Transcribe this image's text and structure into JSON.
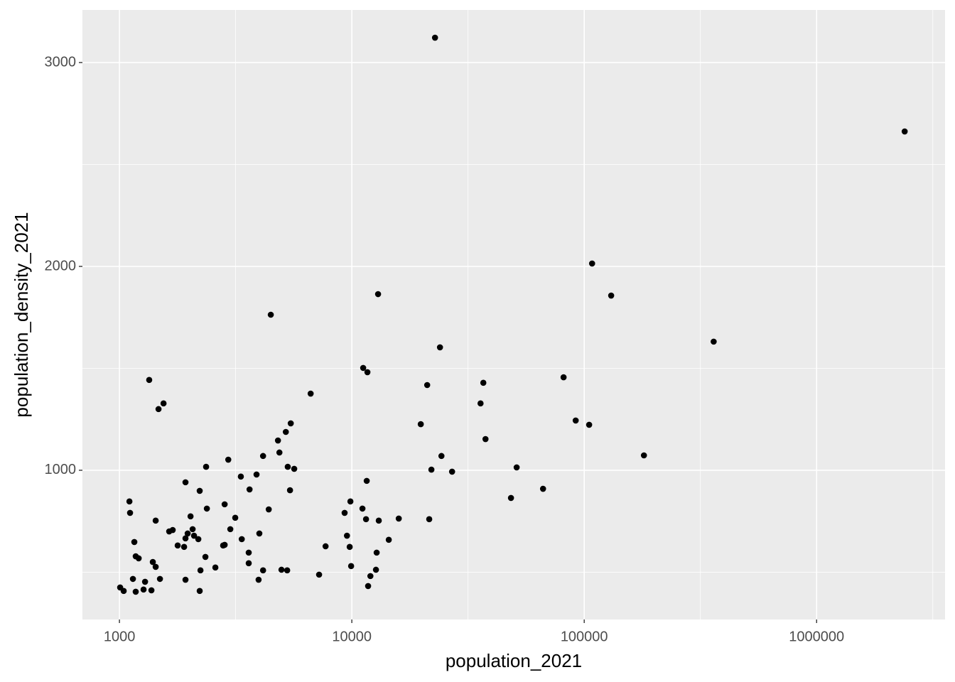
{
  "chart_data": {
    "type": "scatter",
    "x_label": "population_2021",
    "y_label": "population_density_2021",
    "x_scale": "log",
    "color": "#000000",
    "grid": true,
    "xlim": [
      693,
      3570000
    ],
    "xticks": [
      1000,
      10000,
      100000,
      1000000
    ],
    "xminor": [
      3162,
      31623,
      316228,
      3162278
    ],
    "ylim": [
      268,
      3258
    ],
    "yticks": [
      1000,
      2000,
      3000
    ],
    "yminor": [
      500,
      1500,
      2500
    ],
    "x": [
      2393000,
      22800,
      108100,
      130600,
      360600,
      12970,
      4480,
      23950,
      11190,
      11670,
      81500,
      36800,
      21100,
      6650,
      1343,
      35800,
      1548,
      1473,
      91900,
      19800,
      105000,
      5460,
      5200,
      37600,
      4810,
      4880,
      4150,
      24300,
      180700,
      2940,
      2360,
      5300,
      5650,
      51200,
      22000,
      27000,
      3890,
      3330,
      11590,
      1924,
      66500,
      3630,
      5420,
      2215,
      48400,
      1104,
      9860,
      2836,
      2378,
      4390,
      11110,
      1111,
      9310,
      2023,
      3150,
      1432,
      21530,
      11510,
      13060,
      15920,
      3000,
      1695,
      1637,
      2065,
      4000,
      1966,
      2094,
      9530,
      2185,
      1924,
      3360,
      14420,
      1159,
      1781,
      1898,
      2794,
      2836,
      7710,
      9790,
      3600,
      12790,
      1175,
      1210,
      2344,
      1392,
      3600,
      1432,
      2587,
      9930,
      2232,
      4150,
      4980,
      5270,
      12700,
      7230,
      12020,
      1143,
      1494,
      1924,
      3970,
      1289,
      11750,
      1007,
      1043,
      1175,
      1270,
      1373,
      2215
    ],
    "values": [
      2662,
      3122,
      2014,
      1857,
      1631,
      1864,
      1763,
      1603,
      1502,
      1481,
      1456,
      1429,
      1418,
      1376,
      1443,
      1328,
      1328,
      1300,
      1244,
      1226,
      1223,
      1230,
      1188,
      1153,
      1146,
      1087,
      1070,
      1070,
      1073,
      1052,
      1017,
      1017,
      1007,
      1014,
      1003,
      993,
      979,
      969,
      948,
      941,
      909,
      906,
      902,
      899,
      864,
      847,
      847,
      833,
      812,
      808,
      812,
      791,
      791,
      774,
      767,
      753,
      760,
      760,
      753,
      763,
      711,
      707,
      700,
      711,
      690,
      690,
      679,
      679,
      662,
      666,
      662,
      659,
      648,
      631,
      624,
      631,
      634,
      627,
      624,
      596,
      596,
      578,
      568,
      575,
      550,
      544,
      526,
      523,
      530,
      509,
      509,
      512,
      509,
      512,
      488,
      481,
      467,
      467,
      463,
      463,
      453,
      432,
      425,
      408,
      404,
      415,
      411,
      408
    ]
  }
}
